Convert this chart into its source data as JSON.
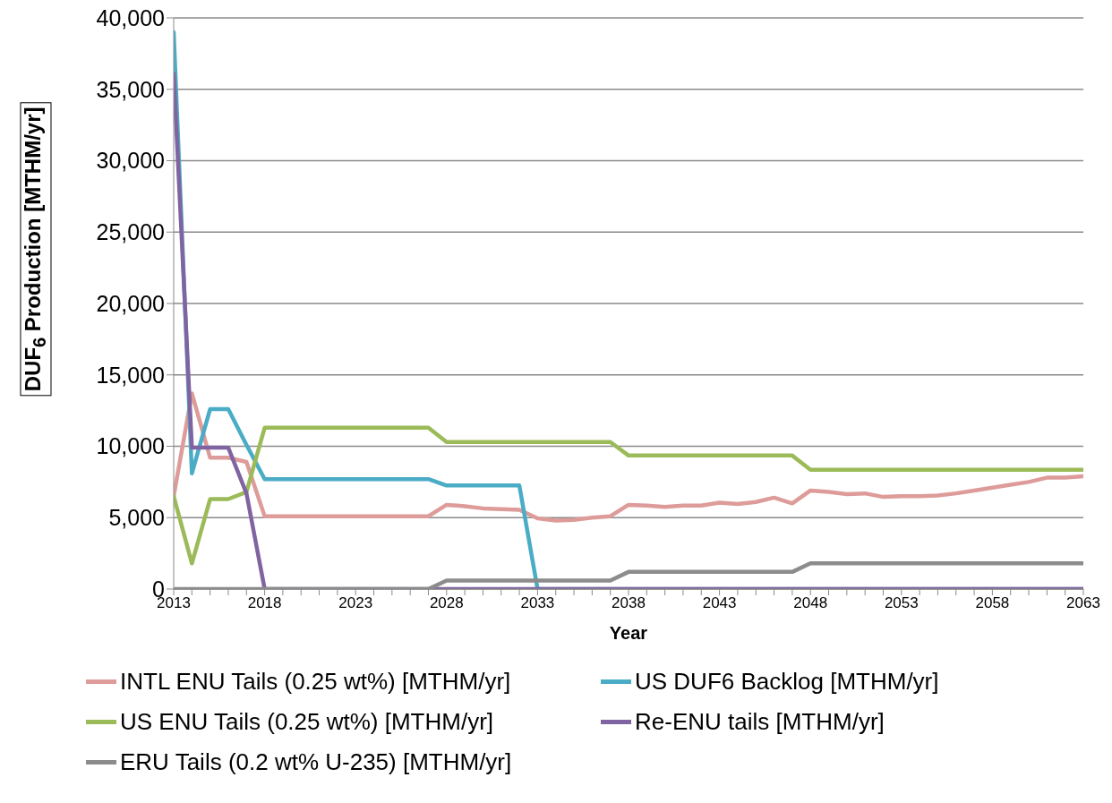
{
  "chart_data": {
    "type": "line",
    "xlabel": "Year",
    "ylabel": "DUF$_{6}$ Production [MTHM/yr]",
    "x": [
      2013,
      2014,
      2015,
      2016,
      2017,
      2018,
      2019,
      2020,
      2021,
      2022,
      2023,
      2024,
      2025,
      2026,
      2027,
      2028,
      2029,
      2030,
      2031,
      2032,
      2033,
      2034,
      2035,
      2036,
      2037,
      2038,
      2039,
      2040,
      2041,
      2042,
      2043,
      2044,
      2045,
      2046,
      2047,
      2048,
      2049,
      2050,
      2051,
      2052,
      2053,
      2054,
      2055,
      2056,
      2057,
      2058,
      2059,
      2060,
      2061,
      2062,
      2063
    ],
    "series": [
      {
        "name": "INTL ENU Tails (0.25 wt%) [MTHM/yr]",
        "color": "#dd9c9a",
        "values": [
          6500,
          13700,
          9200,
          9200,
          8900,
          5100,
          5100,
          5100,
          5100,
          5100,
          5100,
          5100,
          5100,
          5100,
          5100,
          5900,
          5800,
          5650,
          5600,
          5550,
          4950,
          4800,
          4850,
          5000,
          5100,
          5900,
          5850,
          5750,
          5850,
          5850,
          6050,
          5950,
          6100,
          6400,
          6000,
          6900,
          6800,
          6650,
          6700,
          6450,
          6500,
          6500,
          6550,
          6700,
          6900,
          7100,
          7300,
          7500,
          7800,
          7800,
          7900
        ]
      },
      {
        "name": "US DUF6 Backlog [MTHM/yr]",
        "color": "#4bacc6",
        "values": [
          39000,
          8100,
          12600,
          12600,
          10100,
          7700,
          7700,
          7700,
          7700,
          7700,
          7700,
          7700,
          7700,
          7700,
          7700,
          7250,
          7250,
          7250,
          7250,
          7250,
          0,
          0,
          0,
          0,
          0,
          0,
          0,
          0,
          0,
          0,
          0,
          0,
          0,
          0,
          0,
          0,
          0,
          0,
          0,
          0,
          0,
          0,
          0,
          0,
          0,
          0,
          0,
          0,
          0,
          0,
          0
        ]
      },
      {
        "name": "US ENU Tails (0.25 wt%) [MTHM/yr]",
        "color": "#9bbb59",
        "values": [
          6500,
          1800,
          6300,
          6300,
          6800,
          11300,
          11300,
          11300,
          11300,
          11300,
          11300,
          11300,
          11300,
          11300,
          11300,
          10300,
          10300,
          10300,
          10300,
          10300,
          10300,
          10300,
          10300,
          10300,
          10300,
          9350,
          9350,
          9350,
          9350,
          9350,
          9350,
          9350,
          9350,
          9350,
          9350,
          8350,
          8350,
          8350,
          8350,
          8350,
          8350,
          8350,
          8350,
          8350,
          8350,
          8350,
          8350,
          8350,
          8350,
          8350,
          8350
        ]
      },
      {
        "name": "Re-ENU tails [MTHM/yr]",
        "color": "#8064a2",
        "values": [
          36100,
          9900,
          9900,
          9900,
          6700,
          0,
          0,
          0,
          0,
          0,
          0,
          0,
          0,
          0,
          0,
          0,
          0,
          0,
          0,
          0,
          0,
          0,
          0,
          0,
          0,
          0,
          0,
          0,
          0,
          0,
          0,
          0,
          0,
          0,
          0,
          0,
          0,
          0,
          0,
          0,
          0,
          0,
          0,
          0,
          0,
          0,
          0,
          0,
          0,
          0,
          0
        ]
      },
      {
        "name": "ERU Tails (0.2 wt% U-235) [MTHM/yr]",
        "color": "#8c8c8c",
        "values": [
          0,
          0,
          0,
          0,
          0,
          0,
          0,
          0,
          0,
          0,
          0,
          0,
          0,
          0,
          0,
          600,
          600,
          600,
          600,
          600,
          600,
          600,
          600,
          600,
          600,
          1200,
          1200,
          1200,
          1200,
          1200,
          1200,
          1200,
          1200,
          1200,
          1200,
          1800,
          1800,
          1800,
          1800,
          1800,
          1800,
          1800,
          1800,
          1800,
          1800,
          1800,
          1800,
          1800,
          1800,
          1800,
          1800
        ]
      }
    ],
    "xlim": [
      2013,
      2063
    ],
    "xticks": [
      2013,
      {
        "value": 2014,
        "label": null
      },
      {
        "value": 2015,
        "label": null
      },
      {
        "value": 2016,
        "label": null
      },
      {
        "value": 2017,
        "label": null
      },
      2018,
      {
        "value": 2019,
        "label": null
      },
      {
        "value": 2020,
        "label": null
      },
      {
        "value": 2021,
        "label": null
      },
      {
        "value": 2022,
        "label": null
      },
      2023,
      {
        "value": 2024,
        "label": null
      },
      {
        "value": 2025,
        "label": null
      },
      {
        "value": 2026,
        "label": null
      },
      {
        "value": 2027,
        "label": null
      },
      2028,
      {
        "value": 2029,
        "label": null
      },
      {
        "value": 2030,
        "label": null
      },
      {
        "value": 2031,
        "label": null
      },
      {
        "value": 2032,
        "label": null
      },
      2033,
      {
        "value": 2034,
        "label": null
      },
      {
        "value": 2035,
        "label": null
      },
      {
        "value": 2036,
        "label": null
      },
      {
        "value": 2037,
        "label": null
      },
      2038,
      {
        "value": 2039,
        "label": null
      },
      {
        "value": 2040,
        "label": null
      },
      {
        "value": 2041,
        "label": null
      },
      {
        "value": 2042,
        "label": null
      },
      2043,
      {
        "value": 2044,
        "label": null
      },
      {
        "value": 2045,
        "label": null
      },
      {
        "value": 2046,
        "label": null
      },
      {
        "value": 2047,
        "label": null
      },
      2048,
      {
        "value": 2049,
        "label": null
      },
      {
        "value": 2050,
        "label": null
      },
      {
        "value": 2051,
        "label": null
      },
      {
        "value": 2052,
        "label": null
      },
      2053,
      {
        "value": 2054,
        "label": null
      },
      {
        "value": 2055,
        "label": null
      },
      {
        "value": 2056,
        "label": null
      },
      {
        "value": 2057,
        "label": null
      },
      2058,
      {
        "value": 2059,
        "label": null
      },
      {
        "value": 2060,
        "label": null
      },
      {
        "value": 2061,
        "label": null
      },
      {
        "value": 2062,
        "label": null
      },
      2063
    ],
    "ylim": [
      0,
      40000
    ],
    "yticks": [
      0,
      {
        "value": 5000,
        "label": "5,000"
      },
      {
        "value": 10000,
        "label": "10,000"
      },
      {
        "value": 15000,
        "label": "15,000"
      },
      {
        "value": 20000,
        "label": "20,000"
      },
      {
        "value": 25000,
        "label": "25,000"
      },
      {
        "value": 30000,
        "label": "30,000"
      },
      {
        "value": 35000,
        "label": "35,000"
      },
      {
        "value": 40000,
        "label": "40,000"
      }
    ],
    "grid": "y",
    "legend": "bottom",
    "marker": "none",
    "line_style": "solid"
  }
}
